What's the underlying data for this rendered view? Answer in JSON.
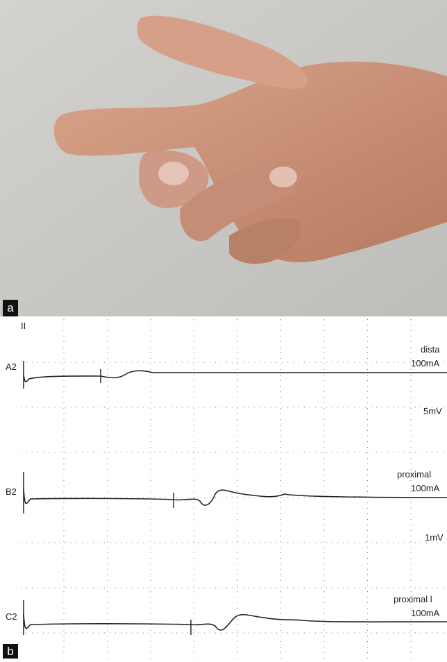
{
  "panel_a": {
    "label": "a"
  },
  "panel_b": {
    "label": "b",
    "top_marker": "II",
    "traces": [
      {
        "channel": "A2",
        "annotation": "dista",
        "stimulus": "100mA",
        "scale": "5mV"
      },
      {
        "channel": "B2",
        "annotation": "proximal",
        "stimulus": "100mA",
        "scale": "1mV"
      },
      {
        "channel": "C2",
        "annotation": "proximal l",
        "stimulus": "100mA"
      }
    ]
  }
}
